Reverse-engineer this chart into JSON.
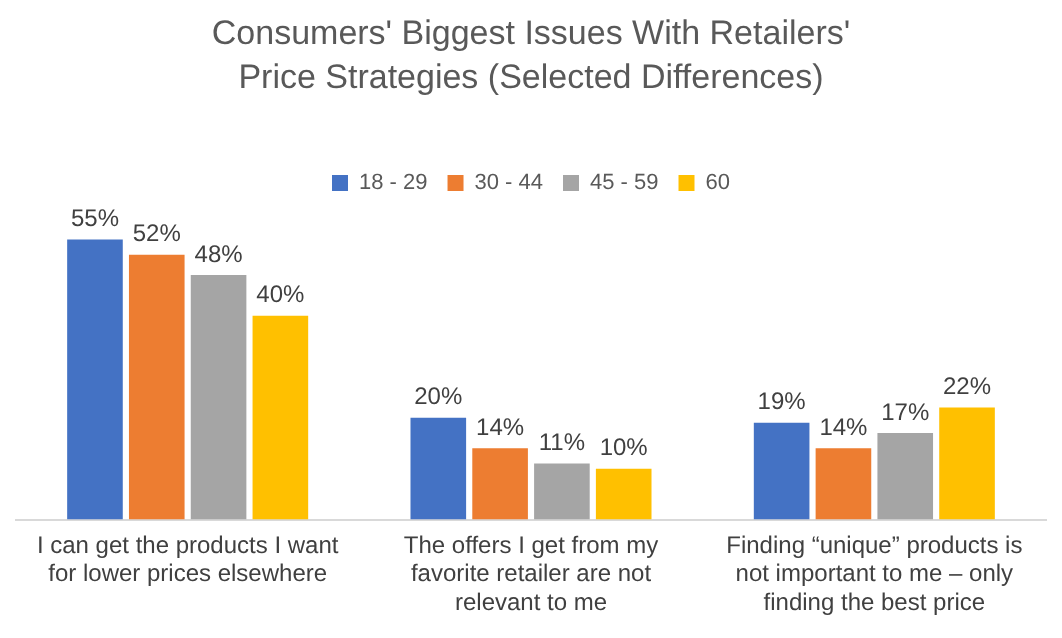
{
  "chart_data": {
    "type": "bar",
    "title": "Consumers' Biggest Issues With Retailers' Price Strategies (Selected Differences)",
    "categories": [
      "I can get the products I want for lower prices elsewhere",
      "The offers I get from my favorite retailer are not relevant to me",
      "Finding “unique” products is not important to me – only finding the best price"
    ],
    "series": [
      {
        "name": "18 - 29",
        "color": "#4472c4",
        "values": [
          55,
          20,
          19
        ],
        "value_labels": [
          "55%",
          "20%",
          "19%"
        ]
      },
      {
        "name": "30 - 44",
        "color": "#ed7d31",
        "values": [
          52,
          14,
          14
        ],
        "value_labels": [
          "52%",
          "14%",
          "14%"
        ]
      },
      {
        "name": "45 - 59",
        "color": "#a5a5a5",
        "values": [
          48,
          11,
          17
        ],
        "value_labels": [
          "48%",
          "11%",
          "17%"
        ]
      },
      {
        "name": "60",
        "color": "#ffc000",
        "values": [
          40,
          10,
          22
        ],
        "value_labels": [
          "40%",
          "10%",
          "22%"
        ]
      }
    ],
    "grid": false,
    "legend": "top",
    "tick_labels": "x"
  }
}
